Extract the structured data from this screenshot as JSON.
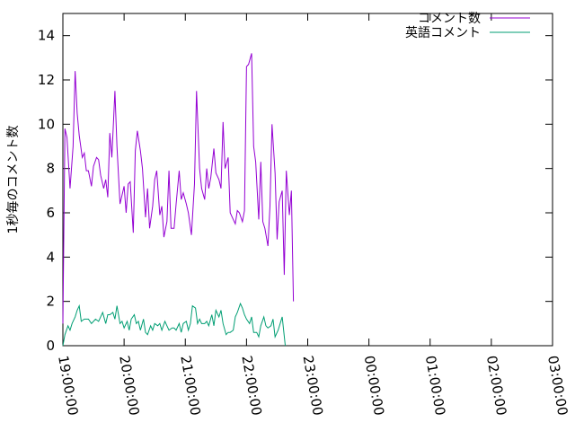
{
  "chart_data": {
    "type": "line",
    "ylabel": "1秒毎のコメント数",
    "xlabel": "",
    "ylim": [
      0,
      15
    ],
    "xlim": [
      "19:00:00",
      "03:00:00"
    ],
    "y_ticks": [
      "0",
      "2",
      "4",
      "6",
      "8",
      "10",
      "12",
      "14"
    ],
    "x_ticks": [
      "19:00:00",
      "20:00:00",
      "21:00:00",
      "22:00:00",
      "23:00:00",
      "00:00:00",
      "01:00:00",
      "02:00:00",
      "03:00:00"
    ],
    "grid": false,
    "legend_position": "top-right",
    "series": [
      {
        "name": "コメント数",
        "color": "#9400d3",
        "points": [
          [
            "19:00:00",
            1.0
          ],
          [
            "19:02:00",
            9.8
          ],
          [
            "19:04:00",
            9.4
          ],
          [
            "19:07:00",
            7.1
          ],
          [
            "19:10:00",
            9.0
          ],
          [
            "19:12:00",
            12.4
          ],
          [
            "19:14:00",
            10.5
          ],
          [
            "19:16:00",
            9.5
          ],
          [
            "19:19:00",
            8.5
          ],
          [
            "19:21:00",
            8.7
          ],
          [
            "19:23:00",
            7.9
          ],
          [
            "19:25:00",
            7.9
          ],
          [
            "19:28:00",
            7.2
          ],
          [
            "19:30:00",
            8.1
          ],
          [
            "19:33:00",
            8.5
          ],
          [
            "19:35:00",
            8.4
          ],
          [
            "19:37:00",
            7.7
          ],
          [
            "19:40:00",
            7.1
          ],
          [
            "19:42:00",
            7.5
          ],
          [
            "19:44:00",
            6.7
          ],
          [
            "19:46:00",
            9.6
          ],
          [
            "19:48:00",
            8.5
          ],
          [
            "19:51:00",
            11.5
          ],
          [
            "19:53:00",
            9.0
          ],
          [
            "19:56:00",
            6.4
          ],
          [
            "20:00:00",
            7.2
          ],
          [
            "20:02:00",
            6.0
          ],
          [
            "20:04:00",
            7.3
          ],
          [
            "20:06:00",
            7.4
          ],
          [
            "20:09:00",
            5.1
          ],
          [
            "20:11:00",
            8.8
          ],
          [
            "20:13:00",
            9.7
          ],
          [
            "20:16:00",
            8.8
          ],
          [
            "20:18:00",
            8.0
          ],
          [
            "20:21:00",
            5.8
          ],
          [
            "20:23:00",
            7.1
          ],
          [
            "20:25:00",
            5.3
          ],
          [
            "20:28:00",
            6.3
          ],
          [
            "20:30:00",
            7.5
          ],
          [
            "20:32:00",
            7.9
          ],
          [
            "20:35:00",
            5.9
          ],
          [
            "20:37:00",
            6.3
          ],
          [
            "20:39:00",
            4.9
          ],
          [
            "20:42:00",
            5.6
          ],
          [
            "20:44:00",
            7.9
          ],
          [
            "20:46:00",
            5.3
          ],
          [
            "20:49:00",
            5.3
          ],
          [
            "20:51:00",
            6.4
          ],
          [
            "20:54:00",
            7.9
          ],
          [
            "20:56:00",
            6.6
          ],
          [
            "20:58:00",
            6.9
          ],
          [
            "21:01:00",
            6.4
          ],
          [
            "21:03:00",
            6.0
          ],
          [
            "21:06:00",
            5.0
          ],
          [
            "21:09:00",
            7.3
          ],
          [
            "21:11:00",
            11.5
          ],
          [
            "21:14:00",
            8.0
          ],
          [
            "21:16:00",
            7.1
          ],
          [
            "21:19:00",
            6.6
          ],
          [
            "21:21:00",
            8.0
          ],
          [
            "21:23:00",
            7.1
          ],
          [
            "21:25:00",
            7.6
          ],
          [
            "21:28:00",
            8.9
          ],
          [
            "21:30:00",
            7.8
          ],
          [
            "21:33:00",
            7.5
          ],
          [
            "21:35:00",
            7.1
          ],
          [
            "21:37:00",
            10.1
          ],
          [
            "21:39:00",
            8.0
          ],
          [
            "21:42:00",
            8.5
          ],
          [
            "21:44:00",
            6.0
          ],
          [
            "21:46:00",
            5.8
          ],
          [
            "21:49:00",
            5.5
          ],
          [
            "21:51:00",
            6.1
          ],
          [
            "21:53:00",
            6.0
          ],
          [
            "21:56:00",
            5.6
          ],
          [
            "21:58:00",
            6.1
          ],
          [
            "22:00:00",
            12.6
          ],
          [
            "22:02:00",
            12.7
          ],
          [
            "22:05:00",
            13.2
          ],
          [
            "22:07:00",
            9.0
          ],
          [
            "22:09:00",
            8.3
          ],
          [
            "22:12:00",
            5.7
          ],
          [
            "22:14:00",
            8.3
          ],
          [
            "22:16:00",
            5.6
          ],
          [
            "22:18:00",
            5.3
          ],
          [
            "22:21:00",
            4.5
          ],
          [
            "22:23:00",
            6.3
          ],
          [
            "22:25:00",
            10.0
          ],
          [
            "22:28:00",
            7.8
          ],
          [
            "22:30:00",
            4.8
          ],
          [
            "22:32:00",
            6.5
          ],
          [
            "22:35:00",
            7.0
          ],
          [
            "22:37:00",
            3.2
          ],
          [
            "22:39:00",
            7.9
          ],
          [
            "22:42:00",
            5.9
          ],
          [
            "22:44:00",
            7.0
          ],
          [
            "22:46:00",
            2.0
          ]
        ]
      },
      {
        "name": "英語コメント",
        "color": "#009e73",
        "points": [
          [
            "19:00:00",
            0.0
          ],
          [
            "19:02:00",
            0.5
          ],
          [
            "19:05:00",
            0.9
          ],
          [
            "19:07:00",
            0.7
          ],
          [
            "19:09:00",
            1.0
          ],
          [
            "19:12:00",
            1.3
          ],
          [
            "19:14:00",
            1.6
          ],
          [
            "19:16:00",
            1.8
          ],
          [
            "19:18:00",
            1.1
          ],
          [
            "19:21:00",
            1.2
          ],
          [
            "19:23:00",
            1.2
          ],
          [
            "19:25:00",
            1.2
          ],
          [
            "19:28:00",
            1.0
          ],
          [
            "19:30:00",
            1.1
          ],
          [
            "19:32:00",
            1.2
          ],
          [
            "19:35:00",
            1.1
          ],
          [
            "19:37:00",
            1.3
          ],
          [
            "19:39:00",
            1.5
          ],
          [
            "19:42:00",
            1.0
          ],
          [
            "19:44:00",
            1.4
          ],
          [
            "19:46:00",
            1.4
          ],
          [
            "19:49:00",
            1.5
          ],
          [
            "19:51:00",
            1.2
          ],
          [
            "19:53:00",
            1.8
          ],
          [
            "19:56:00",
            1.0
          ],
          [
            "19:58:00",
            1.1
          ],
          [
            "20:00:00",
            0.8
          ],
          [
            "20:03:00",
            1.1
          ],
          [
            "20:05:00",
            0.7
          ],
          [
            "20:07:00",
            1.2
          ],
          [
            "20:10:00",
            1.4
          ],
          [
            "20:12:00",
            1.0
          ],
          [
            "20:14:00",
            1.1
          ],
          [
            "20:16:00",
            0.7
          ],
          [
            "20:19:00",
            1.2
          ],
          [
            "20:21:00",
            0.6
          ],
          [
            "20:23:00",
            0.5
          ],
          [
            "20:26:00",
            0.9
          ],
          [
            "20:28:00",
            0.7
          ],
          [
            "20:30:00",
            1.0
          ],
          [
            "20:33:00",
            0.9
          ],
          [
            "20:35:00",
            1.0
          ],
          [
            "20:37:00",
            0.7
          ],
          [
            "20:40:00",
            1.1
          ],
          [
            "20:42:00",
            0.9
          ],
          [
            "20:44:00",
            0.7
          ],
          [
            "20:47:00",
            0.8
          ],
          [
            "20:49:00",
            0.8
          ],
          [
            "20:51:00",
            0.7
          ],
          [
            "20:54:00",
            1.0
          ],
          [
            "20:56:00",
            0.6
          ],
          [
            "20:58:00",
            1.0
          ],
          [
            "21:01:00",
            1.1
          ],
          [
            "21:03:00",
            0.7
          ],
          [
            "21:05:00",
            1.0
          ],
          [
            "21:07:00",
            1.8
          ],
          [
            "21:10:00",
            1.7
          ],
          [
            "21:12:00",
            1.0
          ],
          [
            "21:14:00",
            1.2
          ],
          [
            "21:16:00",
            1.0
          ],
          [
            "21:19:00",
            1.0
          ],
          [
            "21:21:00",
            1.1
          ],
          [
            "21:23:00",
            0.9
          ],
          [
            "21:26:00",
            1.4
          ],
          [
            "21:28:00",
            0.9
          ],
          [
            "21:30:00",
            1.6
          ],
          [
            "21:33:00",
            1.3
          ],
          [
            "21:35:00",
            1.6
          ],
          [
            "21:37:00",
            1.0
          ],
          [
            "21:40:00",
            0.5
          ],
          [
            "21:42:00",
            0.6
          ],
          [
            "21:44:00",
            0.6
          ],
          [
            "21:47:00",
            0.7
          ],
          [
            "21:49:00",
            1.3
          ],
          [
            "21:51:00",
            1.5
          ],
          [
            "21:54:00",
            1.9
          ],
          [
            "21:56:00",
            1.7
          ],
          [
            "21:58:00",
            1.4
          ],
          [
            "22:00:00",
            1.2
          ],
          [
            "22:03:00",
            1.0
          ],
          [
            "22:05:00",
            1.3
          ],
          [
            "22:07:00",
            0.6
          ],
          [
            "22:10:00",
            0.6
          ],
          [
            "22:12:00",
            0.4
          ],
          [
            "22:14:00",
            0.9
          ],
          [
            "22:17:00",
            1.3
          ],
          [
            "22:19:00",
            0.9
          ],
          [
            "22:21:00",
            0.8
          ],
          [
            "22:24:00",
            0.9
          ],
          [
            "22:26:00",
            1.2
          ],
          [
            "22:28:00",
            0.4
          ],
          [
            "22:31:00",
            0.7
          ],
          [
            "22:33:00",
            1.0
          ],
          [
            "22:35:00",
            1.3
          ],
          [
            "22:38:00",
            0.0
          ]
        ]
      }
    ]
  }
}
